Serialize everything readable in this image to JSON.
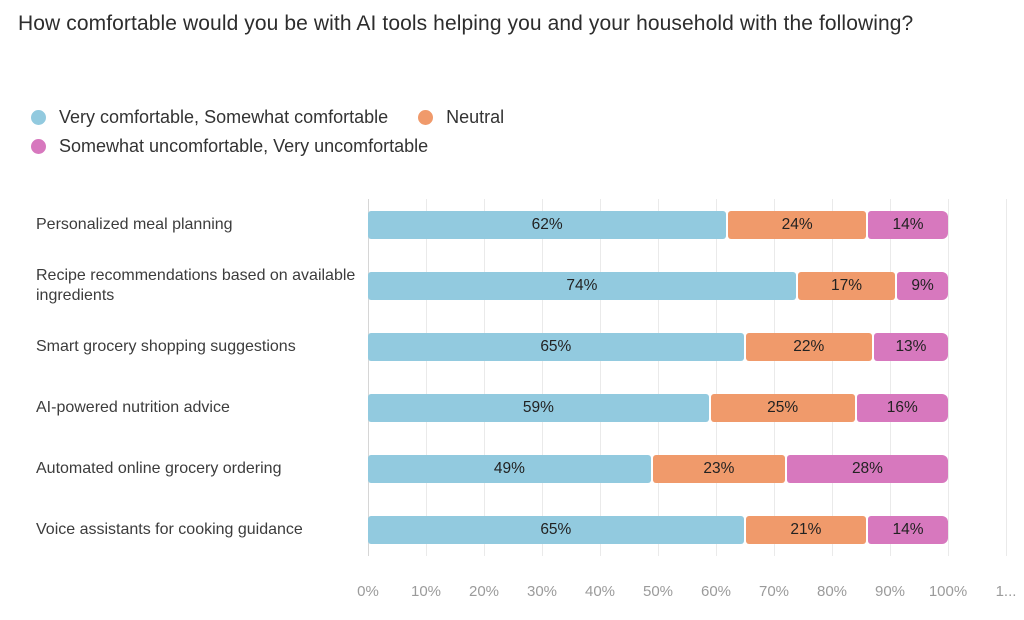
{
  "chart_data": {
    "type": "bar",
    "orientation": "horizontal",
    "stacked": true,
    "title": "How comfortable would you be with AI tools helping you and your household with the following?",
    "categories": [
      "Personalized meal planning",
      "Recipe recommendations based on available ingredients",
      "Smart grocery shopping suggestions",
      "AI-powered nutrition advice",
      "Automated online grocery ordering",
      "Voice assistants for cooking guidance"
    ],
    "series": [
      {
        "name": "Very comfortable, Somewhat comfortable",
        "color": "#92CADF",
        "values": [
          62,
          74,
          65,
          59,
          49,
          65
        ]
      },
      {
        "name": "Neutral",
        "color": "#F09A6B",
        "values": [
          24,
          17,
          22,
          25,
          23,
          21
        ]
      },
      {
        "name": "Somewhat uncomfortable, Very uncomfortable",
        "color": "#D778BE",
        "values": [
          14,
          9,
          13,
          16,
          28,
          14
        ]
      }
    ],
    "value_suffix": "%",
    "x_tick_labels": [
      "0%",
      "10%",
      "20%",
      "30%",
      "40%",
      "50%",
      "60%",
      "70%",
      "80%",
      "90%",
      "100%",
      "1..."
    ],
    "xlim": [
      0,
      110
    ],
    "grid": true,
    "grid_color": "#eaeaea",
    "axis_line_color": "#d6d6d6",
    "legend_position": "top-left"
  }
}
